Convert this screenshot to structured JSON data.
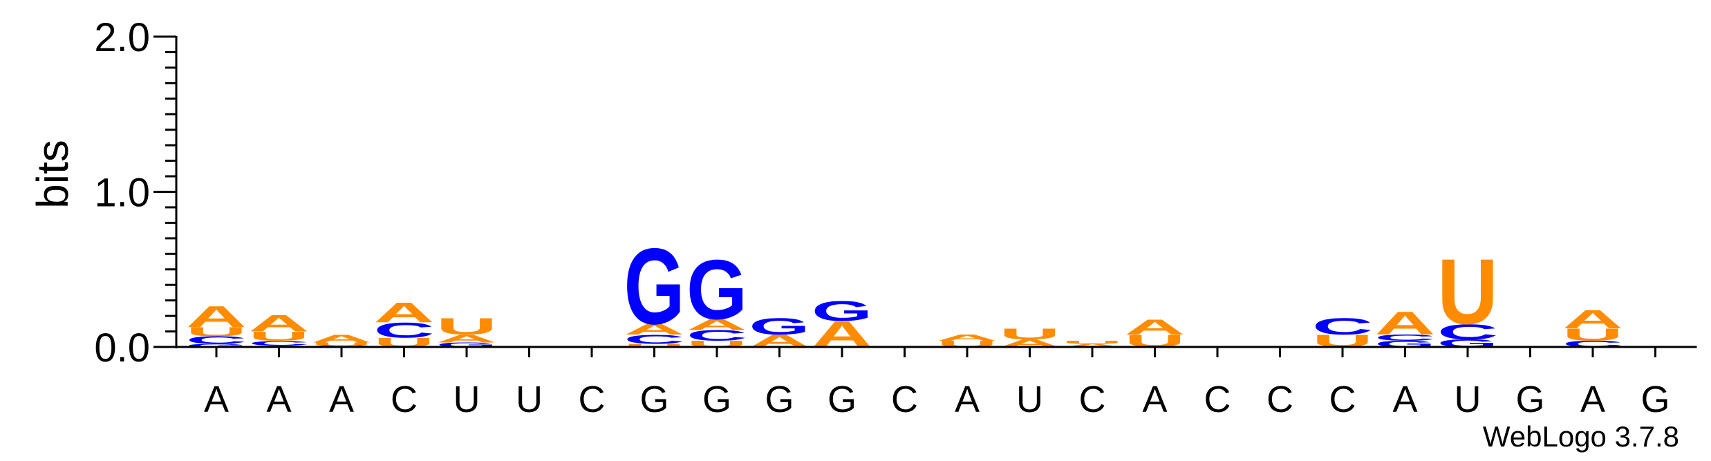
{
  "chart_data": {
    "type": "sequence-logo",
    "ylabel": "bits",
    "ylim": [
      0,
      2
    ],
    "yticks": [
      {
        "value": 0,
        "label": "0.0"
      },
      {
        "value": 1,
        "label": "1.0"
      },
      {
        "value": 2,
        "label": "2.0"
      }
    ],
    "sequence": [
      "A",
      "A",
      "A",
      "C",
      "U",
      "U",
      "C",
      "G",
      "G",
      "G",
      "G",
      "C",
      "A",
      "U",
      "C",
      "A",
      "C",
      "C",
      "C",
      "A",
      "U",
      "G",
      "A",
      "G"
    ],
    "colors": {
      "A": "#ff8c00",
      "U": "#ff8c00",
      "C": "#0000ff",
      "G": "#0000ff"
    },
    "stacks": [
      [
        {
          "letter": "G",
          "bits": 0.02
        },
        {
          "letter": "C",
          "bits": 0.05
        },
        {
          "letter": "U",
          "bits": 0.06
        },
        {
          "letter": "A",
          "bits": 0.14
        }
      ],
      [
        {
          "letter": "G",
          "bits": 0.01
        },
        {
          "letter": "C",
          "bits": 0.03
        },
        {
          "letter": "U",
          "bits": 0.06
        },
        {
          "letter": "A",
          "bits": 0.11
        }
      ],
      [
        {
          "letter": "C",
          "bits": 0.01
        },
        {
          "letter": "U",
          "bits": 0.02
        },
        {
          "letter": "A",
          "bits": 0.05
        }
      ],
      [
        {
          "letter": "U",
          "bits": 0.06
        },
        {
          "letter": "C",
          "bits": 0.1
        },
        {
          "letter": "A",
          "bits": 0.13
        }
      ],
      [
        {
          "letter": "G",
          "bits": 0.03
        },
        {
          "letter": "A",
          "bits": 0.05
        },
        {
          "letter": "U",
          "bits": 0.11
        }
      ],
      [],
      [],
      [
        {
          "letter": "U",
          "bits": 0.02
        },
        {
          "letter": "C",
          "bits": 0.06
        },
        {
          "letter": "A",
          "bits": 0.07
        },
        {
          "letter": "G",
          "bits": 0.5
        }
      ],
      [
        {
          "letter": "U",
          "bits": 0.04
        },
        {
          "letter": "C",
          "bits": 0.07
        },
        {
          "letter": "A",
          "bits": 0.07
        },
        {
          "letter": "G",
          "bits": 0.39
        }
      ],
      [
        {
          "letter": "A",
          "bits": 0.08
        },
        {
          "letter": "G",
          "bits": 0.11
        }
      ],
      [
        {
          "letter": "A",
          "bits": 0.17
        },
        {
          "letter": "G",
          "bits": 0.13
        }
      ],
      [],
      [
        {
          "letter": "U",
          "bits": 0.04
        },
        {
          "letter": "A",
          "bits": 0.04
        }
      ],
      [
        {
          "letter": "A",
          "bits": 0.05
        },
        {
          "letter": "U",
          "bits": 0.07
        }
      ],
      [
        {
          "letter": "A",
          "bits": 0.02
        },
        {
          "letter": "U",
          "bits": 0.02
        }
      ],
      [
        {
          "letter": "U",
          "bits": 0.08
        },
        {
          "letter": "A",
          "bits": 0.1
        }
      ],
      [],
      [],
      [
        {
          "letter": "U",
          "bits": 0.08
        },
        {
          "letter": "C",
          "bits": 0.11
        }
      ],
      [
        {
          "letter": "G",
          "bits": 0.04
        },
        {
          "letter": "C",
          "bits": 0.04
        },
        {
          "letter": "A",
          "bits": 0.15
        }
      ],
      [
        {
          "letter": "G",
          "bits": 0.05
        },
        {
          "letter": "C",
          "bits": 0.1
        },
        {
          "letter": "U",
          "bits": 0.43
        }
      ],
      [],
      [
        {
          "letter": "C",
          "bits": 0.04
        },
        {
          "letter": "U",
          "bits": 0.08
        },
        {
          "letter": "A",
          "bits": 0.12
        }
      ],
      []
    ]
  },
  "credit": "WebLogo 3.7.8"
}
